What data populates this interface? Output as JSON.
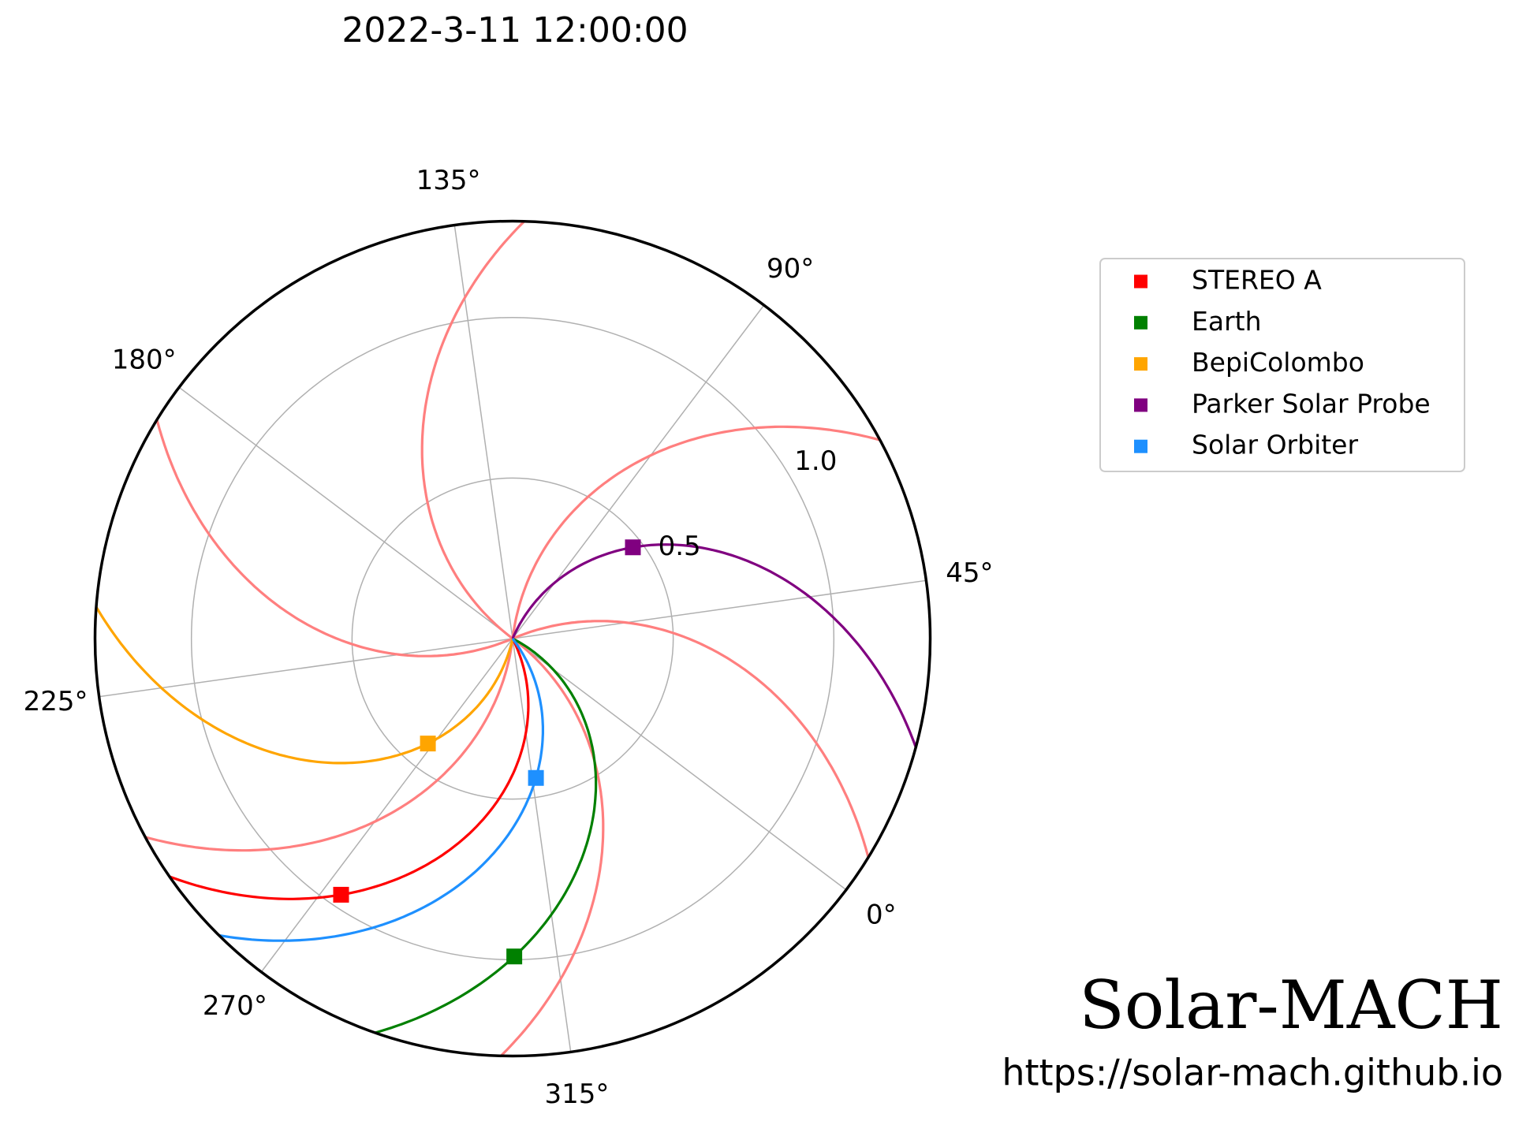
{
  "chart_data": {
    "type": "polar",
    "title": "2022-3-11 12:00:00",
    "series": [
      {
        "name": "STEREO A",
        "color": "#ff0000",
        "r": [
          0.96
        ],
        "theta": [
          273.2
        ]
      },
      {
        "name": "Earth",
        "color": "#008000",
        "r": [
          0.99
        ],
        "theta": [
          307.3
        ]
      },
      {
        "name": "BepiColombo",
        "color": "#ffa500",
        "r": [
          0.42
        ],
        "theta": [
          268.1
        ]
      },
      {
        "name": "Parker Solar Probe",
        "color": "#800080",
        "r": [
          0.47
        ],
        "theta": [
          74.2
        ]
      },
      {
        "name": "Solar Orbiter",
        "color": "#1e90ff",
        "r": [
          0.44
        ],
        "theta": [
          316.5
        ]
      }
    ],
    "rlim": [
      0,
      1.3
    ],
    "rticks": [
      0.5,
      {
        "value": 1,
        "label": "1.0"
      }
    ],
    "thetaticks": [
      {
        "value": 0,
        "label": "0°"
      },
      {
        "value": 45,
        "label": "45°"
      },
      {
        "value": 90,
        "label": "90°"
      },
      {
        "value": 135,
        "label": "135°"
      },
      {
        "value": 180,
        "label": "180°"
      },
      {
        "value": 225,
        "label": "225°"
      },
      {
        "value": 270,
        "label": "270°"
      },
      {
        "value": 315,
        "label": "315°"
      }
    ],
    "grid": true,
    "legend": "upper right",
    "footer": {
      "name": "Solar-MACH",
      "url": "https://solar-mach.github.io"
    }
  }
}
